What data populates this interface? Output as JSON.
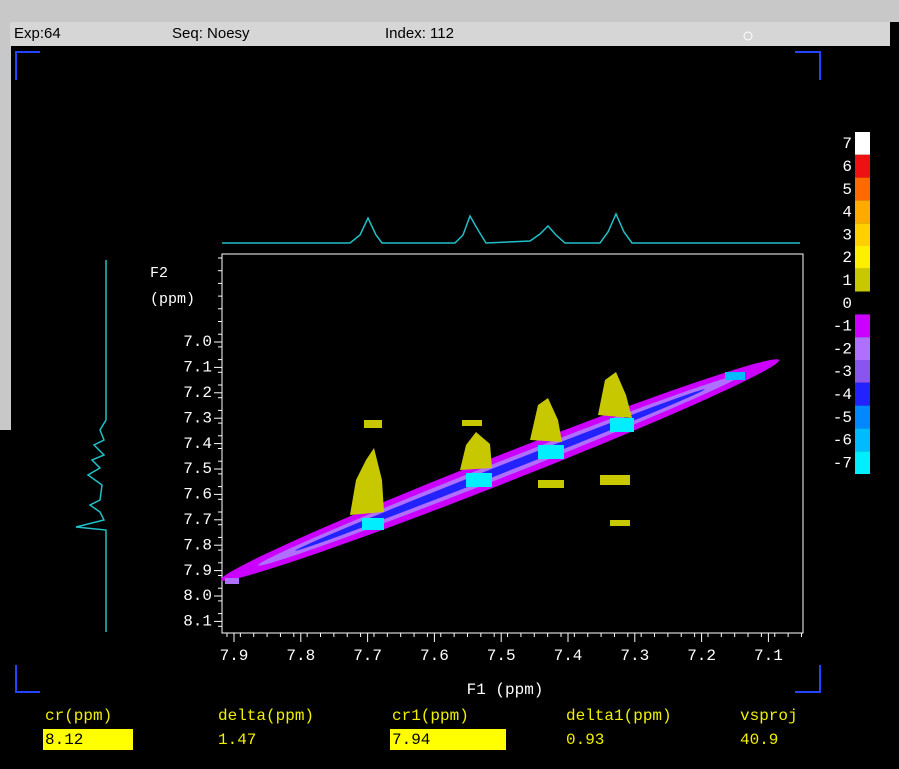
{
  "header": {
    "exp": "Exp:64",
    "seq": "Seq: Noesy",
    "index": "Index: 112"
  },
  "plot": {
    "f2_label": "F2",
    "f2_unit": "(ppm)",
    "f1_label": "F1 (ppm)",
    "y_ticks": [
      "7.0",
      "7.1",
      "7.2",
      "7.3",
      "7.4",
      "7.5",
      "7.6",
      "7.7",
      "7.8",
      "7.9",
      "8.0",
      "8.1"
    ],
    "x_ticks": [
      "7.9",
      "7.8",
      "7.7",
      "7.6",
      "7.5",
      "7.4",
      "7.3",
      "7.2",
      "7.1"
    ]
  },
  "color_scale": {
    "labels": [
      "7",
      "6",
      "5",
      "4",
      "3",
      "2",
      "1",
      "0",
      "-1",
      "-2",
      "-3",
      "-4",
      "-5",
      "-6",
      "-7"
    ],
    "colors": [
      "#ffffff",
      "#ee1111",
      "#ff6a00",
      "#ffaa00",
      "#ffd000",
      "#ffee00",
      "#c8c800",
      "#000000",
      "#cc00ff",
      "#b070ff",
      "#8855ee",
      "#2222ff",
      "#0088ff",
      "#00bbff",
      "#00eeff"
    ]
  },
  "parameters": [
    {
      "label": "cr(ppm)",
      "value": "8.12",
      "highlighted": true
    },
    {
      "label": "delta(ppm)",
      "value": "1.47",
      "highlighted": false
    },
    {
      "label": "cr1(ppm)",
      "value": "7.94",
      "highlighted": true
    },
    {
      "label": "delta1(ppm)",
      "value": "0.93",
      "highlighted": false
    },
    {
      "label": "vsproj",
      "value": "40.9",
      "highlighted": false
    }
  ]
}
